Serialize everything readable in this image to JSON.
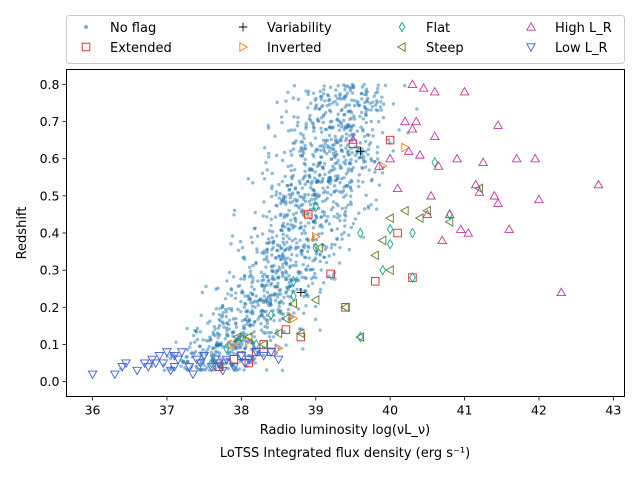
{
  "chart_data": {
    "type": "scatter",
    "xlabel": "Radio luminosity log(νL_ν)",
    "xlabel_secondary": "LoTSS Integrated flux density (erg s⁻¹)",
    "ylabel": "Redshift",
    "xlim": [
      35.65,
      43.15
    ],
    "ylim": [
      -0.04,
      0.84
    ],
    "xticks": [
      36,
      37,
      38,
      39,
      40,
      41,
      42,
      43
    ],
    "yticks": [
      0.0,
      0.1,
      0.2,
      0.3,
      0.4,
      0.5,
      0.6,
      0.7,
      0.8
    ],
    "grid": false,
    "legend_position": "top",
    "series": [
      {
        "name": "No flag",
        "marker": "dot",
        "color": "#1f77b4",
        "density_model": {
          "count": 1400,
          "z_range": [
            0.03,
            0.8
          ],
          "lum_at_z": [
            [
              0.05,
              37.6
            ],
            [
              0.1,
              37.8
            ],
            [
              0.2,
              38.2
            ],
            [
              0.3,
              38.5
            ],
            [
              0.4,
              38.8
            ],
            [
              0.5,
              39.0
            ],
            [
              0.6,
              39.2
            ],
            [
              0.7,
              39.3
            ],
            [
              0.8,
              39.45
            ]
          ],
          "spread": 0.35
        }
      },
      {
        "name": "Extended",
        "marker": "square",
        "color": "#d62728",
        "x": [
          37.7,
          37.9,
          38.0,
          38.1,
          38.2,
          38.3,
          38.4,
          38.6,
          38.8,
          38.9,
          39.2,
          39.4,
          39.5,
          39.8,
          40.0,
          40.1,
          40.3
        ],
        "y": [
          0.04,
          0.06,
          0.07,
          0.05,
          0.08,
          0.1,
          0.08,
          0.14,
          0.12,
          0.45,
          0.29,
          0.2,
          0.64,
          0.27,
          0.65,
          0.4,
          0.28
        ]
      },
      {
        "name": "Variability",
        "marker": "plus",
        "color": "#000000",
        "x": [
          38.8,
          39.6
        ],
        "y": [
          0.24,
          0.62
        ]
      },
      {
        "name": "Inverted",
        "marker": "triangle-right",
        "color": "#ff7f0e",
        "x": [
          37.9,
          38.1,
          38.5,
          38.7,
          38.9,
          39.0,
          39.9,
          40.2
        ],
        "y": [
          0.1,
          0.11,
          0.09,
          0.17,
          0.45,
          0.39,
          0.58,
          0.63
        ]
      },
      {
        "name": "Flat",
        "marker": "diamond",
        "color": "#17a589",
        "x": [
          37.6,
          37.8,
          38.0,
          38.2,
          38.4,
          38.7,
          38.7,
          39.0,
          39.0,
          39.6,
          39.6,
          39.9,
          40.0,
          40.0,
          40.3,
          40.3,
          40.6,
          40.8
        ],
        "y": [
          0.05,
          0.09,
          0.12,
          0.1,
          0.18,
          0.27,
          0.23,
          0.47,
          0.36,
          0.4,
          0.12,
          0.3,
          0.41,
          0.37,
          0.4,
          0.28,
          0.59,
          0.45
        ]
      },
      {
        "name": "Steep",
        "marker": "triangle-left",
        "color": "#5a7d2a",
        "x": [
          37.95,
          38.1,
          38.3,
          38.5,
          38.6,
          38.7,
          38.8,
          39.0,
          39.05,
          39.4,
          39.6,
          39.8,
          39.9,
          40.0,
          40.0,
          40.2,
          40.4,
          40.5,
          40.8,
          41.2
        ],
        "y": [
          0.12,
          0.12,
          0.1,
          0.13,
          0.17,
          0.21,
          0.13,
          0.22,
          0.36,
          0.2,
          0.12,
          0.34,
          0.38,
          0.44,
          0.3,
          0.46,
          0.44,
          0.46,
          0.43,
          0.52
        ]
      },
      {
        "name": "High L_R",
        "marker": "triangle-up",
        "color": "#c1399c",
        "x": [
          39.5,
          39.85,
          40.0,
          40.1,
          40.2,
          40.25,
          40.3,
          40.3,
          40.35,
          40.4,
          40.45,
          40.5,
          40.55,
          40.6,
          40.6,
          40.65,
          40.7,
          40.8,
          40.9,
          40.95,
          41.0,
          41.05,
          41.15,
          41.2,
          41.25,
          41.4,
          41.45,
          41.45,
          41.6,
          41.7,
          41.95,
          42.0,
          42.3,
          42.8
        ],
        "y": [
          0.65,
          0.58,
          0.6,
          0.52,
          0.7,
          0.62,
          0.8,
          0.68,
          0.7,
          0.61,
          0.79,
          0.45,
          0.5,
          0.78,
          0.66,
          0.58,
          0.38,
          0.45,
          0.6,
          0.41,
          0.78,
          0.4,
          0.53,
          0.51,
          0.59,
          0.5,
          0.48,
          0.69,
          0.41,
          0.6,
          0.6,
          0.49,
          0.24,
          0.53
        ]
      },
      {
        "name": "Low L_R",
        "marker": "triangle-down",
        "color": "#3d5fd9",
        "x": [
          36.0,
          36.3,
          36.4,
          36.45,
          36.6,
          36.7,
          36.75,
          36.8,
          36.85,
          36.9,
          36.95,
          37.0,
          37.05,
          37.1,
          37.1,
          37.15,
          37.2,
          37.3,
          37.35,
          37.4,
          37.45,
          37.5,
          37.6,
          37.65,
          37.7,
          37.75,
          37.8,
          37.9,
          38.0,
          38.05,
          38.1,
          38.2,
          38.3,
          38.4,
          38.5
        ],
        "y": [
          0.02,
          0.02,
          0.04,
          0.05,
          0.03,
          0.05,
          0.04,
          0.06,
          0.05,
          0.07,
          0.05,
          0.08,
          0.03,
          0.07,
          0.04,
          0.06,
          0.08,
          0.04,
          0.02,
          0.06,
          0.05,
          0.07,
          0.04,
          0.06,
          0.05,
          0.03,
          0.06,
          0.04,
          0.07,
          0.05,
          0.06,
          0.08,
          0.07,
          0.08,
          0.06
        ]
      }
    ]
  }
}
